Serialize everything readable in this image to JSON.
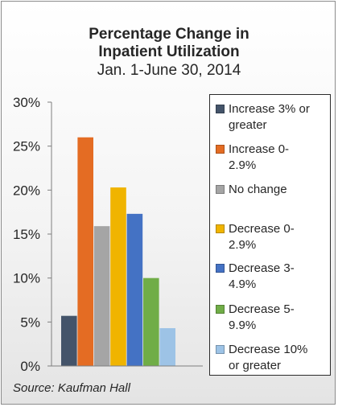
{
  "chart_data": {
    "type": "bar",
    "title_lines": [
      "Percentage Change in",
      "Inpatient Utilization"
    ],
    "subtitle": "Jan. 1-June 30, 2014",
    "ylim": [
      0,
      30
    ],
    "yticks": [
      0,
      5,
      10,
      15,
      20,
      25,
      30
    ],
    "ytick_labels": [
      "0%",
      "5%",
      "10%",
      "15%",
      "20%",
      "25%",
      "30%"
    ],
    "grid": false,
    "legend_position": "right",
    "series": [
      {
        "name": "Increase 3% or greater",
        "legend_lines": [
          "Increase 3% or",
          "greater"
        ],
        "value": 5.7,
        "color": "#44546a"
      },
      {
        "name": "Increase 0-2.9%",
        "legend_lines": [
          "Increase 0-",
          "2.9%"
        ],
        "value": 26.0,
        "color": "#e46c23"
      },
      {
        "name": "No change",
        "legend_lines": [
          "No change"
        ],
        "value": 15.9,
        "color": "#a5a5a5"
      },
      {
        "name": "Decrease 0-2.9%",
        "legend_lines": [
          "Decrease 0-",
          "2.9%"
        ],
        "value": 20.3,
        "color": "#f0b400"
      },
      {
        "name": "Decrease 3-4.9%",
        "legend_lines": [
          "Decrease 3-",
          "4.9%"
        ],
        "value": 17.3,
        "color": "#4472c4"
      },
      {
        "name": "Decrease 5-9.9%",
        "legend_lines": [
          "Decrease 5-",
          "9.9%"
        ],
        "value": 10.0,
        "color": "#70ad47"
      },
      {
        "name": "Decrease 10% or greater",
        "legend_lines": [
          "Decrease 10%",
          "or greater"
        ],
        "value": 4.3,
        "color": "#9dc3e6"
      }
    ],
    "source": "Source: Kaufman Hall"
  }
}
